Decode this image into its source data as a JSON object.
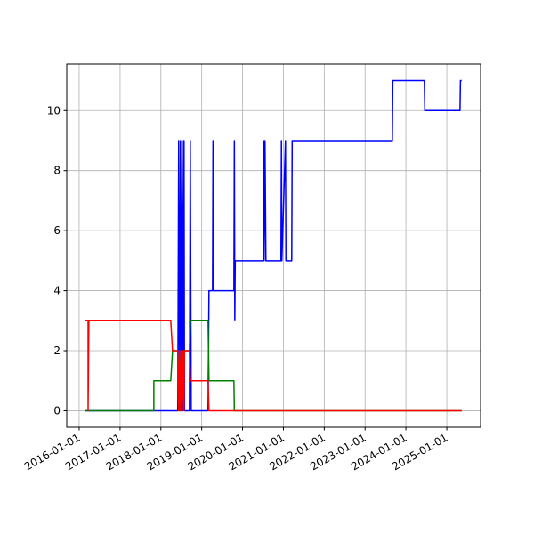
{
  "chart_data": {
    "type": "line",
    "x": [
      "2016-02-25",
      "2016-03-21",
      "2016-03-21",
      "2016-03-28",
      "2017-10-30",
      "2017-10-30",
      "2018-03-30",
      "2018-04-15",
      "2018-06-01",
      "2018-06-09",
      "2018-06-17",
      "2018-06-25",
      "2018-07-03",
      "2018-07-11",
      "2018-07-19",
      "2018-07-27",
      "2018-07-31",
      "2018-09-13",
      "2018-09-21",
      "2018-09-29",
      "2019-02-27",
      "2019-03-07",
      "2019-04-08",
      "2019-04-12",
      "2019-04-16",
      "2019-10-16",
      "2019-10-20",
      "2019-10-24",
      "2019-10-28",
      "2020-07-04",
      "2020-07-08",
      "2020-07-12",
      "2020-07-20",
      "2020-07-28",
      "2020-12-10",
      "2020-12-14",
      "2020-12-18",
      "2021-01-19",
      "2021-01-23",
      "2021-03-16",
      "2021-03-20",
      "2023-09-02",
      "2023-09-06",
      "2024-06-14",
      "2024-06-18",
      "2025-04-29",
      "2025-05-03",
      "2025-05-14"
    ],
    "series": [
      {
        "color": "#0000ff",
        "values": [
          0,
          0,
          0,
          0,
          0,
          0,
          0,
          0,
          0,
          9,
          0,
          9,
          0,
          9,
          0,
          9,
          0,
          0,
          9,
          0,
          0,
          4,
          4,
          9,
          4,
          4,
          9,
          3,
          5,
          5,
          9,
          5,
          9,
          5,
          5,
          9,
          5,
          9,
          5,
          5,
          9,
          9,
          11,
          11,
          10,
          10,
          11,
          11
        ]
      },
      {
        "color": "#008000",
        "values": [
          0,
          0,
          0,
          0,
          0,
          1,
          1,
          2,
          2,
          0,
          2,
          0,
          2,
          0,
          2,
          2,
          2,
          2,
          3,
          3,
          3,
          1,
          1,
          1,
          1,
          1,
          0,
          0,
          0,
          0,
          0,
          0,
          0,
          0,
          0,
          0,
          0,
          0,
          0,
          0,
          0,
          0,
          0,
          0,
          0,
          0,
          0,
          0
        ]
      },
      {
        "color": "#ff0000",
        "values": [
          3,
          3,
          0,
          3,
          3,
          3,
          3,
          2,
          2,
          0,
          2,
          0,
          2,
          0,
          2,
          0,
          2,
          2,
          1,
          1,
          1,
          0,
          0,
          0,
          0,
          0,
          0,
          0,
          0,
          0,
          0,
          0,
          0,
          0,
          0,
          0,
          0,
          0,
          0,
          0,
          0,
          0,
          0,
          0,
          0,
          0,
          0,
          0
        ]
      }
    ],
    "xlim": [
      "2015-09-12",
      "2025-10-30"
    ],
    "xticks": [
      "2016-01-01",
      "2017-01-01",
      "2018-01-01",
      "2019-01-01",
      "2020-01-01",
      "2021-01-01",
      "2022-01-01",
      "2023-01-01",
      "2024-01-01",
      "2025-01-01"
    ],
    "ylim": [
      -0.55,
      11.55
    ],
    "yticks": [
      0,
      2,
      4,
      6,
      8,
      10
    ],
    "grid": true
  }
}
